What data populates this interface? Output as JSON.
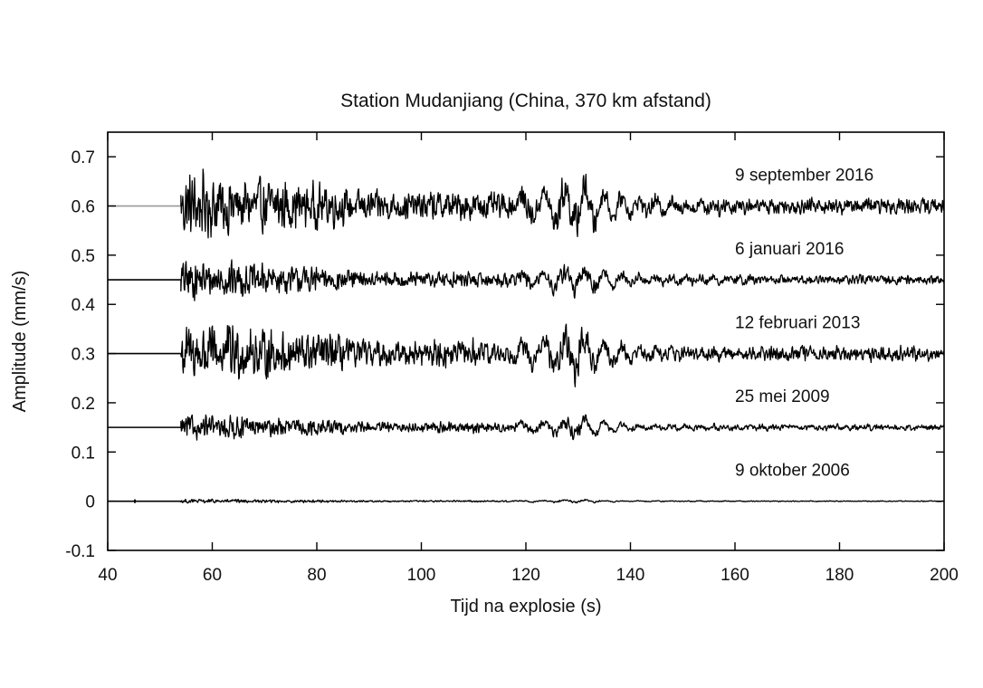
{
  "chart_data": {
    "type": "line",
    "title": "Station Mudanjiang (China, 370 km afstand)",
    "xlabel": "Tijd na explosie (s)",
    "ylabel": "Amplitude (mm/s)",
    "xlim": [
      40,
      200
    ],
    "ylim": [
      -0.1,
      0.75
    ],
    "xticks": [
      "40",
      "60",
      "80",
      "100",
      "120",
      "140",
      "160",
      "180",
      "200"
    ],
    "yticks": [
      "-0.1",
      "0",
      "0.1",
      "0.2",
      "0.3",
      "0.4",
      "0.5",
      "0.6",
      "0.7"
    ],
    "grid": false,
    "colors": {
      "line": "#000000",
      "baseline_pre_onset": "#999999",
      "axis": "#000000"
    },
    "series": [
      {
        "label": "9 september 2016",
        "baseline": 0.6,
        "onset_s": 54,
        "peak_amplitude": 0.085,
        "label_x": 160,
        "label_y": 0.652
      },
      {
        "label": "6 januari 2016",
        "baseline": 0.45,
        "onset_s": 54,
        "peak_amplitude": 0.048,
        "label_x": 160,
        "label_y": 0.502
      },
      {
        "label": "12 februari 2013",
        "baseline": 0.3,
        "onset_s": 54,
        "peak_amplitude": 0.075,
        "label_x": 160,
        "label_y": 0.352
      },
      {
        "label": "25 mei 2009",
        "baseline": 0.15,
        "onset_s": 54,
        "peak_amplitude": 0.03,
        "label_x": 160,
        "label_y": 0.202
      },
      {
        "label": "9 oktober 2006",
        "baseline": 0.0,
        "onset_s": 54,
        "peak_amplitude": 0.005,
        "label_x": 160,
        "label_y": 0.052
      }
    ]
  }
}
